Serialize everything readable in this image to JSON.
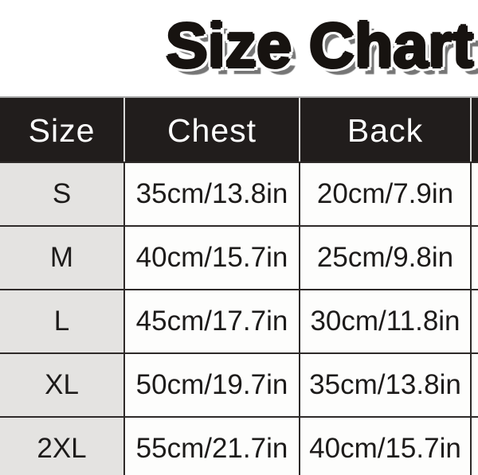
{
  "title": "Size Chart",
  "chart_data": {
    "type": "table",
    "title": "Size Chart",
    "columns": [
      "Size",
      "Chest",
      "Back"
    ],
    "rows": [
      {
        "size": "S",
        "chest": "35cm/13.8in",
        "back": "20cm/7.9in"
      },
      {
        "size": "M",
        "chest": "40cm/15.7in",
        "back": "25cm/9.8in"
      },
      {
        "size": "L",
        "chest": "45cm/17.7in",
        "back": "30cm/11.8in"
      },
      {
        "size": "XL",
        "chest": "50cm/19.7in",
        "back": "35cm/13.8in"
      },
      {
        "size": "2XL",
        "chest": "55cm/21.7in",
        "back": "40cm/15.7in"
      }
    ]
  },
  "colors": {
    "header_bg": "#211d1c",
    "header_text": "#ffffff",
    "size_column_bg": "#e4e3e1",
    "cell_bg": "#fdfdfc",
    "body_border": "#2e2a29",
    "header_divider": "#d9d9d8",
    "title_text": "#171310",
    "title_outline": "#ffffff",
    "title_shadow": "#767676"
  }
}
